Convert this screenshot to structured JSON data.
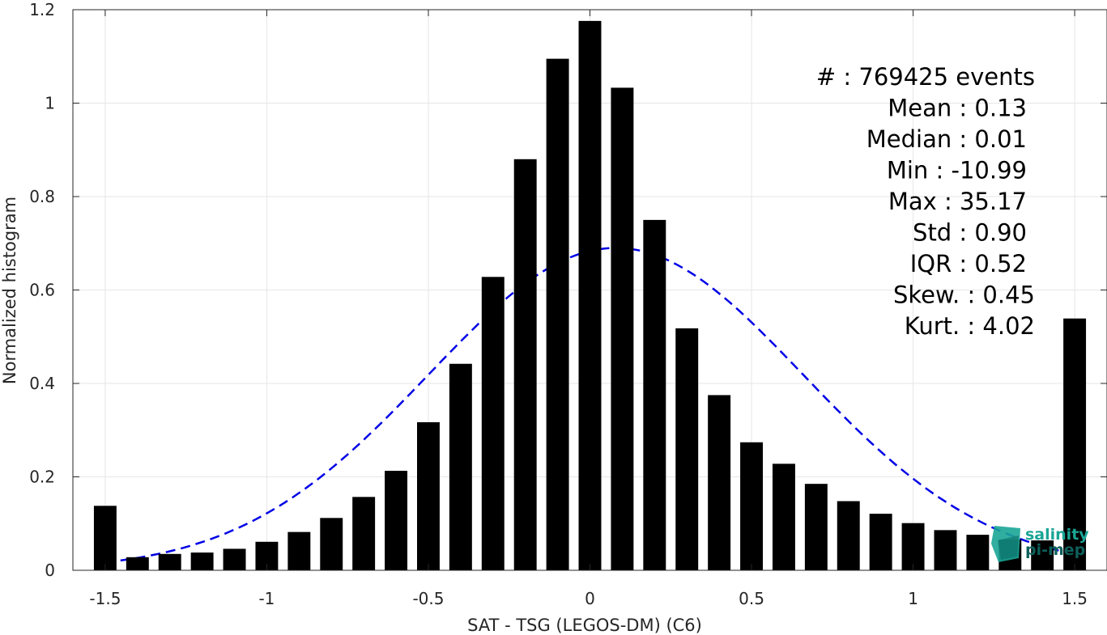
{
  "chart_data": {
    "type": "bar",
    "xlabel": "SAT - TSG (LEGOS-DM) (C6)",
    "ylabel": "Normalized histogram",
    "xlim": [
      -1.6,
      1.6
    ],
    "ylim": [
      0,
      1.2
    ],
    "xticks": [
      -1.5,
      -1,
      -0.5,
      0,
      0.5,
      1,
      1.5
    ],
    "xtick_labels": [
      "-1.5",
      "-1",
      "-0.5",
      "0",
      "0.5",
      "1",
      "1.5"
    ],
    "yticks": [
      0,
      0.2,
      0.4,
      0.6,
      0.8,
      1,
      1.2
    ],
    "ytick_labels": [
      "0",
      "0.2",
      "0.4",
      "0.6",
      "0.8",
      "1",
      "1.2"
    ],
    "grid": true,
    "bar_width": 0.07,
    "bar_color": "#000000",
    "x": [
      -1.5,
      -1.4,
      -1.3,
      -1.2,
      -1.1,
      -1.0,
      -0.9,
      -0.8,
      -0.7,
      -0.6,
      -0.5,
      -0.4,
      -0.3,
      -0.2,
      -0.1,
      0.0,
      0.1,
      0.2,
      0.3,
      0.4,
      0.5,
      0.6,
      0.7,
      0.8,
      0.9,
      1.0,
      1.1,
      1.2,
      1.3,
      1.4,
      1.5
    ],
    "values": [
      0.138,
      0.028,
      0.035,
      0.038,
      0.046,
      0.061,
      0.082,
      0.112,
      0.157,
      0.213,
      0.317,
      0.442,
      0.628,
      0.88,
      1.095,
      1.176,
      1.033,
      0.75,
      0.518,
      0.375,
      0.274,
      0.228,
      0.185,
      0.148,
      0.121,
      0.101,
      0.086,
      0.076,
      0.066,
      0.064,
      0.539
    ],
    "fit_curve": {
      "type": "gaussian",
      "mean": 0.08,
      "std": 0.58,
      "peak": 0.69,
      "x_range": [
        -1.5,
        1.5
      ],
      "color": "#0000e6",
      "style": "dashed"
    },
    "stats_lines": [
      "#  : 769425 events",
      "Mean : 0.13",
      "Median : 0.01",
      "Min : -10.99",
      "Max : 35.17",
      "Std : 0.90",
      "IQR : 0.52",
      "Skew. : 0.45",
      "Kurt. : 4.02"
    ],
    "logo": {
      "line1": "salinity",
      "line2": "pi-mep",
      "color": "#1aa596"
    }
  }
}
